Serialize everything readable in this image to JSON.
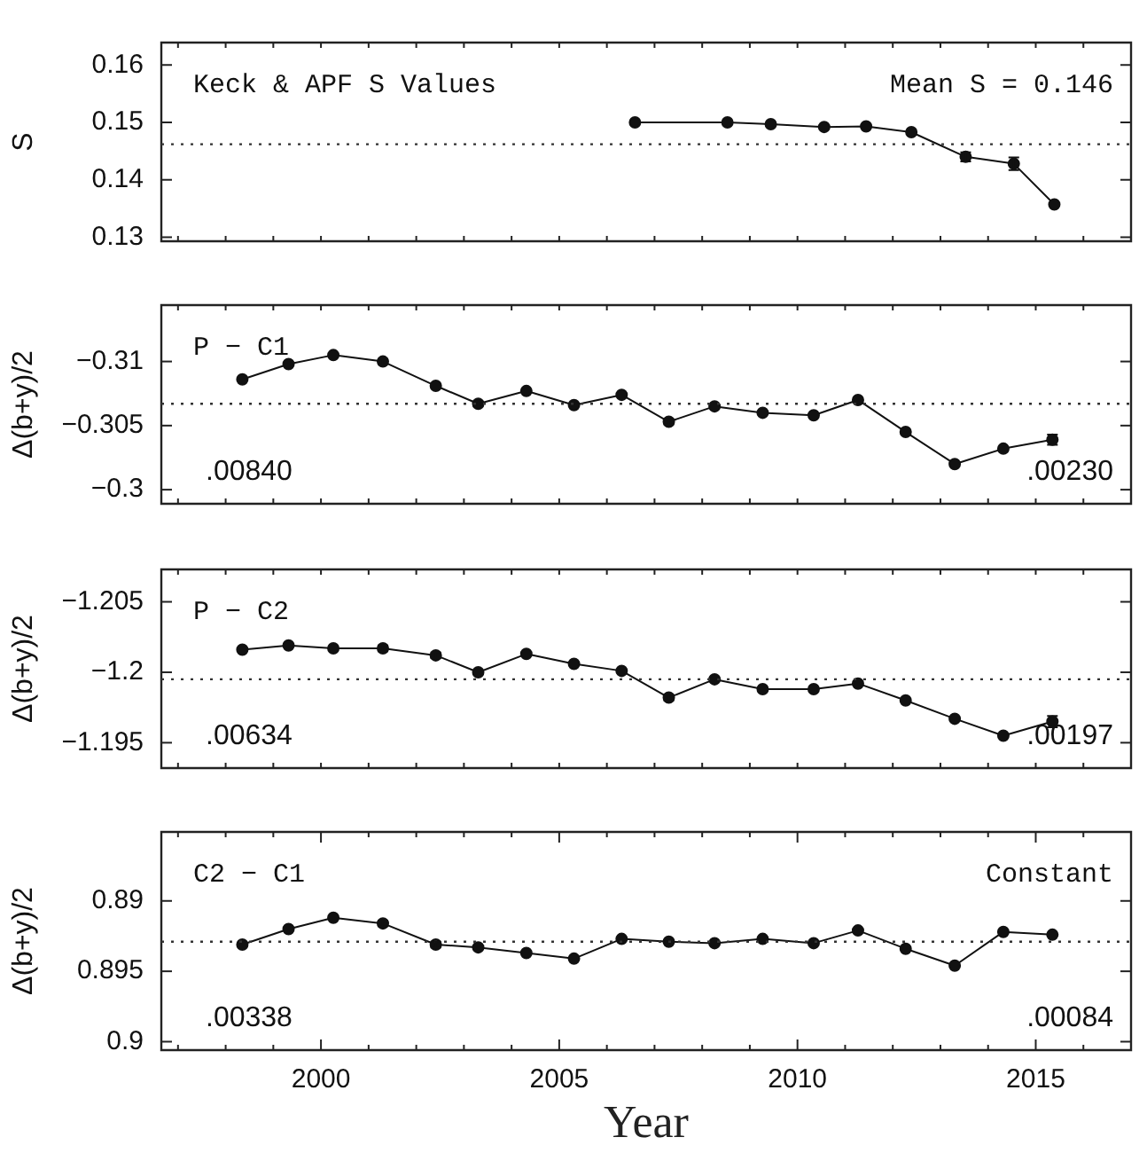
{
  "chart_data": [
    {
      "type": "line",
      "title": "Keck & APF S Values",
      "ylabel": "S",
      "annotations": [
        "Mean S = 0.146"
      ],
      "marker": "circle",
      "tick_labels": "y",
      "x": [
        2006.59,
        2008.53,
        2009.44,
        2010.56,
        2011.44,
        2012.39,
        2013.53,
        2014.54,
        2015.39
      ],
      "series": [
        {
          "color": "#111111",
          "values": [
            0.15,
            0.15,
            0.1497,
            0.1492,
            0.1493,
            0.1483,
            0.144,
            0.1428,
            0.1357
          ],
          "errors": [
            null,
            null,
            null,
            null,
            null,
            null,
            0.0008,
            0.0011,
            null
          ]
        }
      ],
      "xlim": [
        1996.65,
        2017.0
      ],
      "xticks": [
        {
          "value": 1997,
          "label": null
        },
        {
          "value": 1998,
          "label": null
        },
        {
          "value": 1999,
          "label": null
        },
        {
          "value": 2000,
          "label": null
        },
        {
          "value": 2001,
          "label": null
        },
        {
          "value": 2002,
          "label": null
        },
        {
          "value": 2003,
          "label": null
        },
        {
          "value": 2004,
          "label": null
        },
        {
          "value": 2005,
          "label": null
        },
        {
          "value": 2006,
          "label": null
        },
        {
          "value": 2007,
          "label": null
        },
        {
          "value": 2008,
          "label": null
        },
        {
          "value": 2009,
          "label": null
        },
        {
          "value": 2010,
          "label": null
        },
        {
          "value": 2011,
          "label": null
        },
        {
          "value": 2012,
          "label": null
        },
        {
          "value": 2013,
          "label": null
        },
        {
          "value": 2014,
          "label": null
        },
        {
          "value": 2015,
          "label": null
        },
        {
          "value": 2016,
          "label": null
        }
      ],
      "ylim": [
        0.1293,
        0.1639
      ],
      "yticks": [
        0.13,
        0.14,
        0.15,
        0.16
      ],
      "ref_lines": [
        {
          "axis": "y",
          "value": 0.1462,
          "line_style": "dotted",
          "color": "#333333"
        }
      ]
    },
    {
      "type": "line",
      "title": "P − C1",
      "ylabel": "Δ(b+y)/2",
      "annotations": [
        ".00840",
        ".00230"
      ],
      "marker": "circle",
      "tick_labels": "y",
      "x": [
        1998.35,
        1999.32,
        2000.26,
        2001.3,
        2002.41,
        2003.3,
        2004.31,
        2005.31,
        2006.31,
        2007.3,
        2008.26,
        2009.27,
        2010.34,
        2011.27,
        2012.27,
        2013.3,
        2014.32,
        2015.35
      ],
      "series": [
        {
          "color": "#111111",
          "values": [
            -0.3086,
            -0.3098,
            -0.3105,
            -0.31,
            -0.3081,
            -0.3067,
            -0.3077,
            -0.3066,
            -0.3074,
            -0.3053,
            -0.3065,
            -0.306,
            -0.3058,
            -0.307,
            -0.3045,
            -0.302,
            -0.3032,
            -0.3039
          ],
          "errors": [
            null,
            null,
            null,
            0.0002,
            null,
            0.0002,
            null,
            null,
            null,
            0.0002,
            null,
            null,
            null,
            null,
            null,
            null,
            null,
            0.0004
          ]
        }
      ],
      "xlim": [
        1996.65,
        2017.0
      ],
      "xticks": [
        {
          "value": 1997,
          "label": null
        },
        {
          "value": 1998,
          "label": null
        },
        {
          "value": 1999,
          "label": null
        },
        {
          "value": 2000,
          "label": null
        },
        {
          "value": 2001,
          "label": null
        },
        {
          "value": 2002,
          "label": null
        },
        {
          "value": 2003,
          "label": null
        },
        {
          "value": 2004,
          "label": null
        },
        {
          "value": 2005,
          "label": null
        },
        {
          "value": 2006,
          "label": null
        },
        {
          "value": 2007,
          "label": null
        },
        {
          "value": 2008,
          "label": null
        },
        {
          "value": 2009,
          "label": null
        },
        {
          "value": 2010,
          "label": null
        },
        {
          "value": 2011,
          "label": null
        },
        {
          "value": 2012,
          "label": null
        },
        {
          "value": 2013,
          "label": null
        },
        {
          "value": 2014,
          "label": null
        },
        {
          "value": 2015,
          "label": null
        },
        {
          "value": 2016,
          "label": null
        }
      ],
      "ylim": [
        -0.2989,
        -0.3144
      ],
      "yticks": [
        {
          "value": -0.31,
          "label": "−0.31"
        },
        {
          "value": -0.305,
          "label": "−0.305"
        },
        {
          "value": -0.3,
          "label": "−0.3"
        }
      ],
      "ref_lines": [
        {
          "axis": "y",
          "value": -0.3067,
          "line_style": "dotted",
          "color": "#333333"
        }
      ]
    },
    {
      "type": "line",
      "title": "P − C2",
      "ylabel": "Δ(b+y)/2",
      "annotations": [
        ".00634",
        ".00197"
      ],
      "marker": "circle",
      "tick_labels": "y",
      "x": [
        1998.35,
        1999.32,
        2000.26,
        2001.3,
        2002.41,
        2003.3,
        2004.31,
        2005.31,
        2006.31,
        2007.3,
        2008.26,
        2009.27,
        2010.34,
        2011.27,
        2012.27,
        2013.3,
        2014.32,
        2015.35
      ],
      "series": [
        {
          "color": "#111111",
          "values": [
            -1.2016,
            -1.2019,
            -1.2017,
            -1.2017,
            -1.2012,
            -1.2,
            -1.2013,
            -1.2006,
            -1.2001,
            -1.1982,
            -1.1995,
            -1.1988,
            -1.1988,
            -1.1992,
            -1.198,
            -1.1967,
            -1.1955,
            -1.1965
          ],
          "errors": [
            null,
            null,
            null,
            0.0002,
            0.0002,
            null,
            null,
            null,
            null,
            0.0002,
            null,
            null,
            null,
            null,
            null,
            null,
            null,
            0.0004
          ]
        }
      ],
      "xlim": [
        1996.65,
        2017.0
      ],
      "xticks": [
        {
          "value": 1997,
          "label": null
        },
        {
          "value": 1998,
          "label": null
        },
        {
          "value": 1999,
          "label": null
        },
        {
          "value": 2000,
          "label": null
        },
        {
          "value": 2001,
          "label": null
        },
        {
          "value": 2002,
          "label": null
        },
        {
          "value": 2003,
          "label": null
        },
        {
          "value": 2004,
          "label": null
        },
        {
          "value": 2005,
          "label": null
        },
        {
          "value": 2006,
          "label": null
        },
        {
          "value": 2007,
          "label": null
        },
        {
          "value": 2008,
          "label": null
        },
        {
          "value": 2009,
          "label": null
        },
        {
          "value": 2010,
          "label": null
        },
        {
          "value": 2011,
          "label": null
        },
        {
          "value": 2012,
          "label": null
        },
        {
          "value": 2013,
          "label": null
        },
        {
          "value": 2014,
          "label": null
        },
        {
          "value": 2015,
          "label": null
        },
        {
          "value": 2016,
          "label": null
        }
      ],
      "ylim": [
        -1.1932,
        -1.2073
      ],
      "yticks": [
        {
          "value": -1.205,
          "label": "−1.205"
        },
        {
          "value": -1.2,
          "label": "−1.2"
        },
        {
          "value": -1.195,
          "label": "−1.195"
        }
      ],
      "ref_lines": [
        {
          "axis": "y",
          "value": -1.1995,
          "line_style": "dotted",
          "color": "#333333"
        }
      ]
    },
    {
      "type": "line",
      "title": "C2 − C1",
      "xlabel": "Year",
      "ylabel": "Δ(b+y)/2",
      "annotations": [
        "Constant",
        ".00338",
        ".00084"
      ],
      "marker": "circle",
      "x": [
        1998.35,
        1999.32,
        2000.26,
        2001.3,
        2002.41,
        2003.3,
        2004.31,
        2005.31,
        2006.31,
        2007.3,
        2008.26,
        2009.27,
        2010.34,
        2011.27,
        2012.27,
        2013.3,
        2014.32,
        2015.35
      ],
      "series": [
        {
          "color": "#111111",
          "values": [
            0.8931,
            0.892,
            0.8912,
            0.8916,
            0.8931,
            0.8933,
            0.8937,
            0.8941,
            0.8927,
            0.8929,
            0.893,
            0.8927,
            0.893,
            0.8921,
            0.8934,
            0.8946,
            0.8922,
            0.8924
          ],
          "errors": [
            null,
            null,
            null,
            0.0002,
            0.0002,
            null,
            null,
            null,
            null,
            null,
            null,
            null,
            null,
            null,
            null,
            null,
            null,
            null
          ]
        }
      ],
      "xlim": [
        1996.65,
        2017.0
      ],
      "xticks": [
        {
          "value": 1997,
          "label": null
        },
        {
          "value": 1998,
          "label": null
        },
        {
          "value": 1999,
          "label": null
        },
        2000,
        {
          "value": 2001,
          "label": null
        },
        {
          "value": 2002,
          "label": null
        },
        {
          "value": 2003,
          "label": null
        },
        {
          "value": 2004,
          "label": null
        },
        2005,
        {
          "value": 2006,
          "label": null
        },
        {
          "value": 2007,
          "label": null
        },
        {
          "value": 2008,
          "label": null
        },
        {
          "value": 2009,
          "label": null
        },
        2010,
        {
          "value": 2011,
          "label": null
        },
        {
          "value": 2012,
          "label": null
        },
        {
          "value": 2013,
          "label": null
        },
        {
          "value": 2014,
          "label": null
        },
        2015,
        {
          "value": 2016,
          "label": null
        }
      ],
      "ylim": [
        0.9006,
        0.8851
      ],
      "yticks": [
        0.89,
        0.895,
        0.9
      ],
      "ref_lines": [
        {
          "axis": "y",
          "value": 0.8929,
          "line_style": "dotted",
          "color": "#333333"
        }
      ]
    }
  ]
}
